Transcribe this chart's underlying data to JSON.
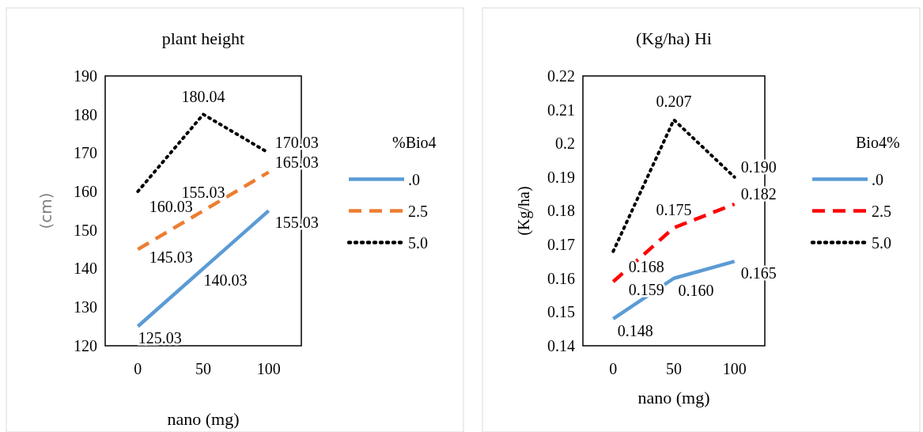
{
  "chart_data": [
    {
      "type": "line",
      "title": "plant height",
      "xlabel": "nano (mg)",
      "ylabel": "(cm)",
      "legend_title": "%Bio4",
      "categories": [
        "0",
        "50",
        "100"
      ],
      "ylim": [
        120,
        190
      ],
      "yticks": [
        120,
        130,
        140,
        150,
        160,
        170,
        180,
        190
      ],
      "legend": "right",
      "series": [
        {
          "name": ".0",
          "color": "#5b9bd5",
          "line_style": "solid",
          "values": [
            125.03,
            140.03,
            155.03
          ],
          "value_labels": [
            "125.03",
            "140.03",
            "155.03"
          ]
        },
        {
          "name": "2.5",
          "color": "#ed7d31",
          "line_style": "dashed",
          "values": [
            145.03,
            155.03,
            165.03
          ],
          "value_labels": [
            "145.03",
            "155.03",
            "165.03"
          ]
        },
        {
          "name": "5.0",
          "color": "#000000",
          "line_style": "dotted",
          "values": [
            160.03,
            180.04,
            170.03
          ],
          "value_labels": [
            "160.03",
            "180.04",
            "170.03"
          ]
        }
      ]
    },
    {
      "type": "line",
      "title": "(Kg/ha)  Hi",
      "xlabel": "nano (mg)",
      "ylabel": "(Kg/ha)",
      "legend_title": "Bio4%",
      "categories": [
        "0",
        "50",
        "100"
      ],
      "ylim": [
        0.14,
        0.22
      ],
      "yticks": [
        {
          "value": 0.14,
          "label": "0.14"
        },
        {
          "value": 0.15,
          "label": "0.15"
        },
        {
          "value": 0.16,
          "label": "0.16"
        },
        {
          "value": 0.17,
          "label": "0.17"
        },
        {
          "value": 0.18,
          "label": "0.18"
        },
        {
          "value": 0.19,
          "label": "0.19"
        },
        {
          "value": 0.2,
          "label": "0.2"
        },
        {
          "value": 0.21,
          "label": "0.21"
        },
        {
          "value": 0.22,
          "label": "0.22"
        }
      ],
      "legend": "right",
      "series": [
        {
          "name": ".0",
          "color": "#5b9bd5",
          "line_style": "solid",
          "values": [
            0.148,
            0.16,
            0.165
          ],
          "value_labels": [
            "0.148",
            "0.160",
            "0.165"
          ]
        },
        {
          "name": "2.5",
          "color": "#ff0000",
          "line_style": "dashed",
          "values": [
            0.159,
            0.175,
            0.182
          ],
          "value_labels": [
            "0.159",
            "0.175",
            "0.182"
          ]
        },
        {
          "name": "5.0",
          "color": "#000000",
          "line_style": "dotted",
          "values": [
            0.168,
            0.207,
            0.19
          ],
          "value_labels": [
            "0.168",
            "0.207",
            "0.190"
          ]
        }
      ]
    }
  ]
}
